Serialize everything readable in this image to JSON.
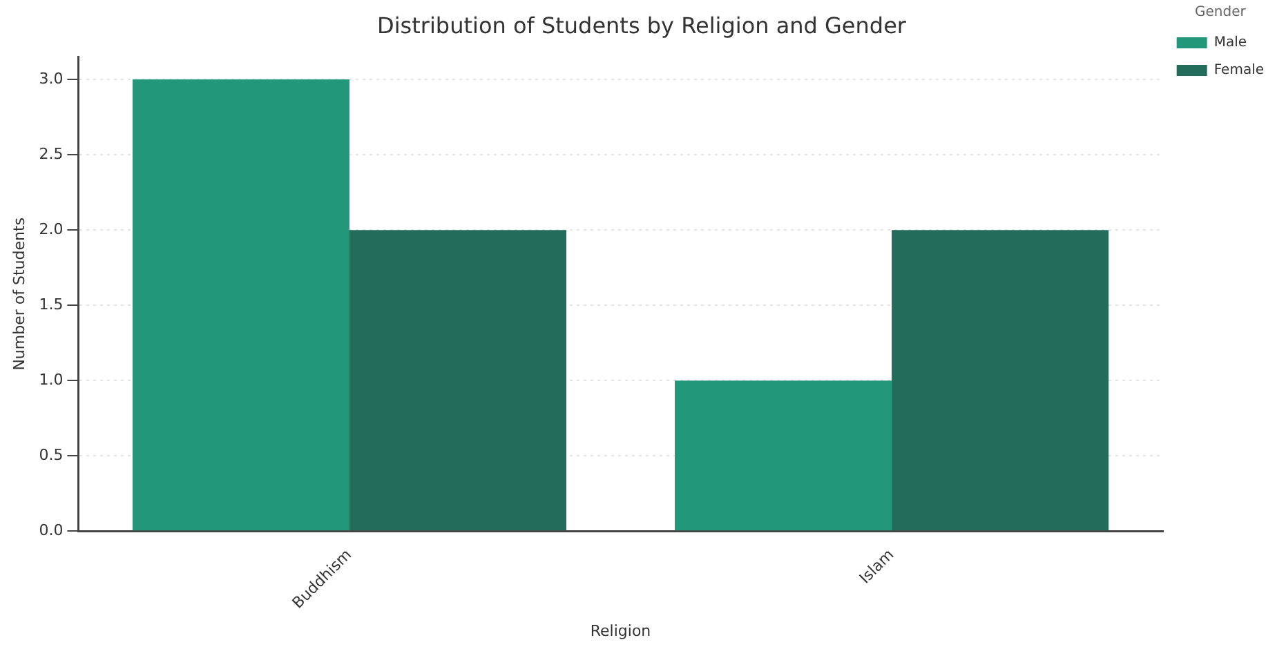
{
  "chart_data": {
    "type": "bar",
    "title": "Distribution of Students by Religion and Gender",
    "xlabel": "Religion",
    "ylabel": "Number of Students",
    "legend_title": "Gender",
    "categories": [
      "Buddhism",
      "Islam"
    ],
    "series": [
      {
        "name": "Male",
        "color": "#23977a",
        "values": [
          3,
          1
        ]
      },
      {
        "name": "Female",
        "color": "#236b5b",
        "values": [
          2,
          2
        ]
      }
    ],
    "ylim": [
      0,
      3.15
    ],
    "yticks": [
      {
        "value": 0,
        "label": "0.0"
      },
      {
        "value": 0.5,
        "label": "0.5"
      },
      {
        "value": 1,
        "label": "1.0"
      },
      {
        "value": 1.5,
        "label": "1.5"
      },
      {
        "value": 2,
        "label": "2.0"
      },
      {
        "value": 2.5,
        "label": "2.5"
      },
      {
        "value": 3,
        "label": "3.0"
      }
    ],
    "grid": "y",
    "legend": "top right"
  }
}
